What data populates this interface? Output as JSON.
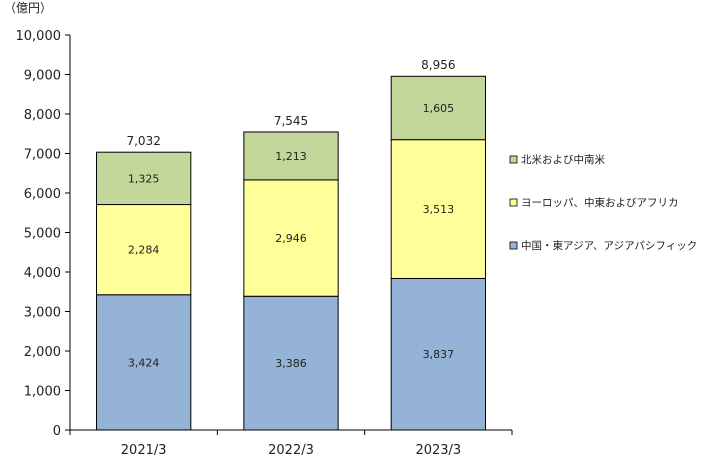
{
  "chart_data": {
    "type": "bar",
    "stacked": true,
    "unit_label": "（億円）",
    "categories": [
      "2021/3",
      "2022/3",
      "2023/3"
    ],
    "series": [
      {
        "name": "中国・東アジア、アジアパシフィック",
        "values": [
          3424,
          3386,
          3837
        ],
        "labels": [
          "3,424",
          "3,386",
          "3,837"
        ],
        "color": "#95b3d7"
      },
      {
        "name": "ヨーロッパ、中東およびアフリカ",
        "values": [
          2284,
          2946,
          3513
        ],
        "labels": [
          "2,284",
          "2,946",
          "3,513"
        ],
        "color": "#ffff99"
      },
      {
        "name": "北米および中南米",
        "values": [
          1325,
          1213,
          1605
        ],
        "labels": [
          "1,325",
          "1,213",
          "1,605"
        ],
        "color": "#c4d79b"
      }
    ],
    "totals": [
      7032,
      7545,
      8956
    ],
    "total_labels": [
      "7,032",
      "7,545",
      "8,956"
    ],
    "ylim": [
      0,
      10000
    ],
    "yticks": [
      0,
      1000,
      2000,
      3000,
      4000,
      5000,
      6000,
      7000,
      8000,
      9000,
      10000
    ],
    "ytick_labels": [
      "0",
      "1,000",
      "2,000",
      "3,000",
      "4,000",
      "5,000",
      "6,000",
      "7,000",
      "8,000",
      "9,000",
      "10,000"
    ],
    "grid": false,
    "legend_position": "right"
  }
}
